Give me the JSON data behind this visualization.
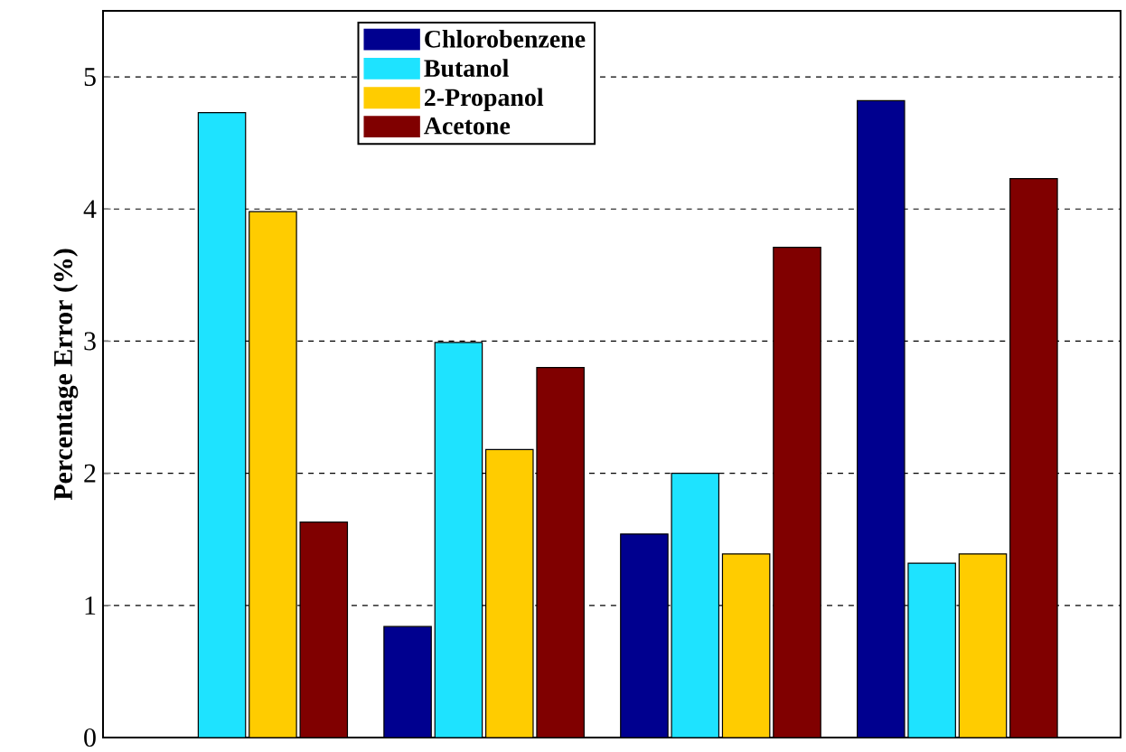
{
  "chart_data": {
    "type": "bar",
    "ylabel": "Percentage Error (%)",
    "categories": [
      null,
      null,
      null,
      null
    ],
    "series": [
      {
        "name": "Chlorobenzene",
        "color": "#00008f",
        "values": [
          null,
          0.84,
          1.54,
          4.82
        ]
      },
      {
        "name": "Butanol",
        "color": "#1ee3ff",
        "values": [
          4.73,
          2.99,
          2.0,
          1.32
        ]
      },
      {
        "name": "2-Propanol",
        "color": "#ffcc00",
        "values": [
          3.98,
          2.18,
          1.39,
          1.39
        ]
      },
      {
        "name": "Acetone",
        "color": "#800000",
        "values": [
          1.63,
          2.8,
          3.71,
          4.23
        ]
      }
    ],
    "ylim": [
      0,
      5.5
    ],
    "yticks": [
      0,
      1,
      2,
      3,
      4,
      5
    ],
    "grid": "y",
    "legend": "top"
  }
}
